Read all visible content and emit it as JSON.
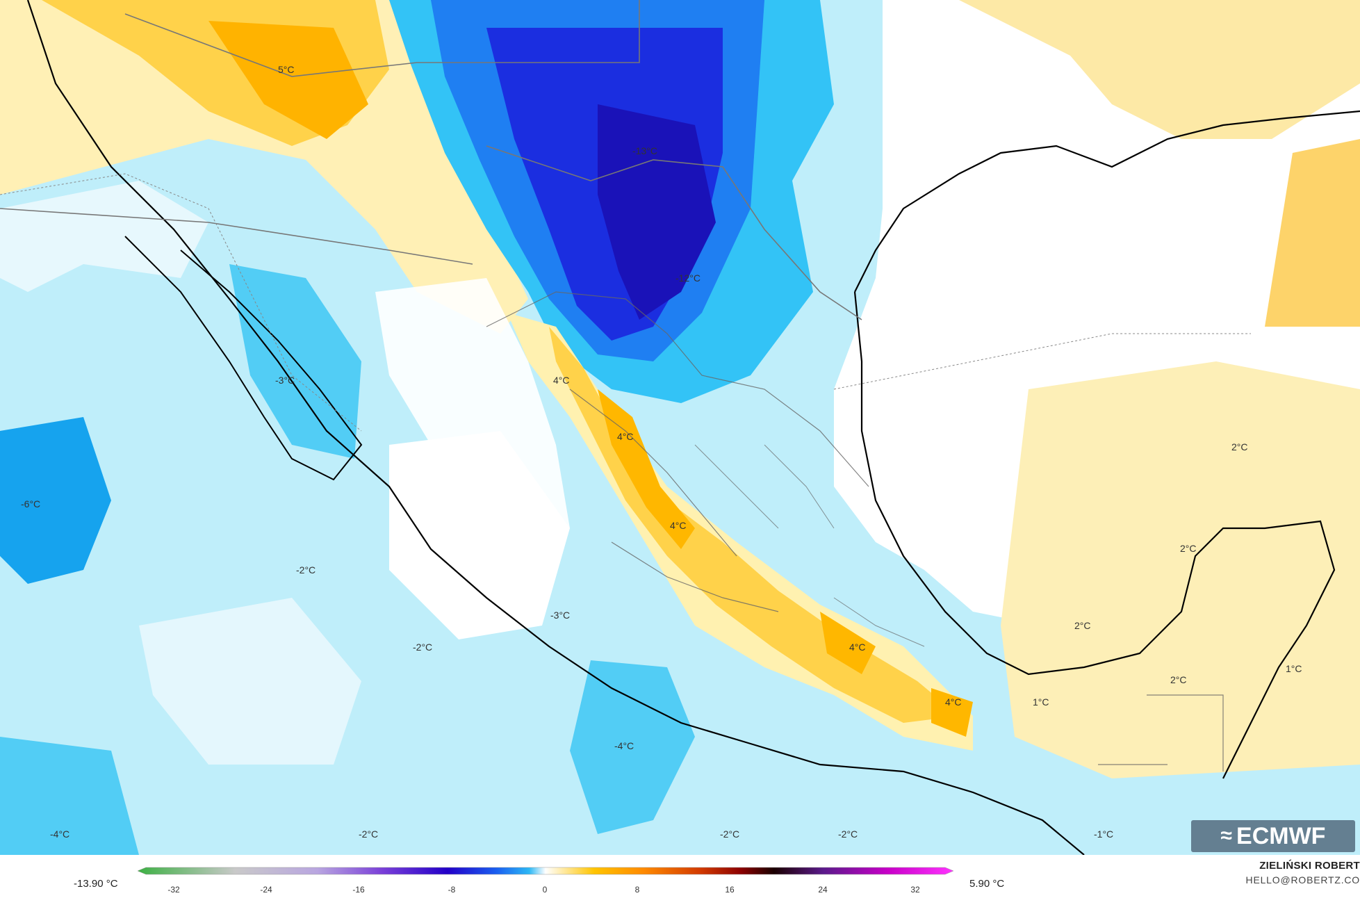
{
  "map": {
    "labels": [
      {
        "id": "l1",
        "text": "5°C"
      },
      {
        "id": "l2",
        "text": "-13°C"
      },
      {
        "id": "l3",
        "text": "-12°C"
      },
      {
        "id": "l4",
        "text": "-3°C"
      },
      {
        "id": "l5",
        "text": "4°C"
      },
      {
        "id": "l6",
        "text": "4°C"
      },
      {
        "id": "l7",
        "text": "4°C"
      },
      {
        "id": "l8",
        "text": "-6°C"
      },
      {
        "id": "l9",
        "text": "-2°C"
      },
      {
        "id": "l10",
        "text": "-3°C"
      },
      {
        "id": "l11",
        "text": "-2°C"
      },
      {
        "id": "l12",
        "text": "4°C"
      },
      {
        "id": "l13",
        "text": "4°C"
      },
      {
        "id": "l14",
        "text": "-4°C"
      },
      {
        "id": "l15",
        "text": "1°C"
      },
      {
        "id": "l16",
        "text": "2°C"
      },
      {
        "id": "l17",
        "text": "2°C"
      },
      {
        "id": "l18",
        "text": "2°C"
      },
      {
        "id": "l19",
        "text": "2°C"
      },
      {
        "id": "l20",
        "text": "1°C"
      },
      {
        "id": "l21",
        "text": "-4°C"
      },
      {
        "id": "l22",
        "text": "-2°C"
      },
      {
        "id": "l23",
        "text": "-2°C"
      },
      {
        "id": "l24",
        "text": "-2°C"
      },
      {
        "id": "l25",
        "text": "-1°C"
      }
    ]
  },
  "legend": {
    "min_value": "-13.90 °C",
    "max_value": "5.90 °C",
    "ticks": [
      "-32",
      "-24",
      "-16",
      "-8",
      "0",
      "8",
      "16",
      "24",
      "32"
    ],
    "colors": [
      "#3cb043",
      "#7fd37f",
      "#c9c9c9",
      "#b9a6e0",
      "#7a3fd8",
      "#2200c8",
      "#1a5ff0",
      "#2db8f5",
      "#bfefff",
      "#ffffff",
      "#fff3b0",
      "#ffc400",
      "#ff8a00",
      "#d23a00",
      "#8b0000",
      "#1a0000",
      "#5a1a8a",
      "#c800c8",
      "#ff33ff"
    ]
  },
  "credits": {
    "author": "ZIELIŃSKI ROBERT",
    "contact": "HELLO@ROBERTZ.CO",
    "logo_text": "ECMWF",
    "logo_icon": "ecmwf-logo-icon"
  }
}
